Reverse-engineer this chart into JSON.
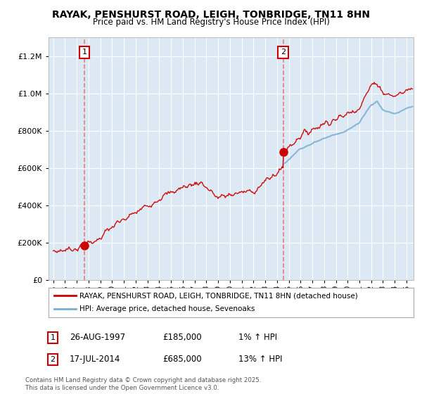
{
  "title1": "RAYAK, PENSHURST ROAD, LEIGH, TONBRIDGE, TN11 8HN",
  "title2": "Price paid vs. HM Land Registry's House Price Index (HPI)",
  "bg_color": "#ffffff",
  "plot_bg": "#dce9f5",
  "grid_color": "#ffffff",
  "red_color": "#cc0000",
  "blue_color": "#7aadcf",
  "sale1_date": 1997.65,
  "sale1_price": 185000,
  "sale2_date": 2014.54,
  "sale2_price": 685000,
  "xmin": 1994.6,
  "xmax": 2025.6,
  "ymin": 0,
  "ymax": 1300000,
  "legend_line1": "RAYAK, PENSHURST ROAD, LEIGH, TONBRIDGE, TN11 8HN (detached house)",
  "legend_line2": "HPI: Average price, detached house, Sevenoaks",
  "annotation1_label": "1",
  "annotation1_date": "26-AUG-1997",
  "annotation1_price": "£185,000",
  "annotation1_hpi": "1% ↑ HPI",
  "annotation2_label": "2",
  "annotation2_date": "17-JUL-2014",
  "annotation2_price": "£685,000",
  "annotation2_hpi": "13% ↑ HPI",
  "footnote": "Contains HM Land Registry data © Crown copyright and database right 2025.\nThis data is licensed under the Open Government Licence v3.0."
}
